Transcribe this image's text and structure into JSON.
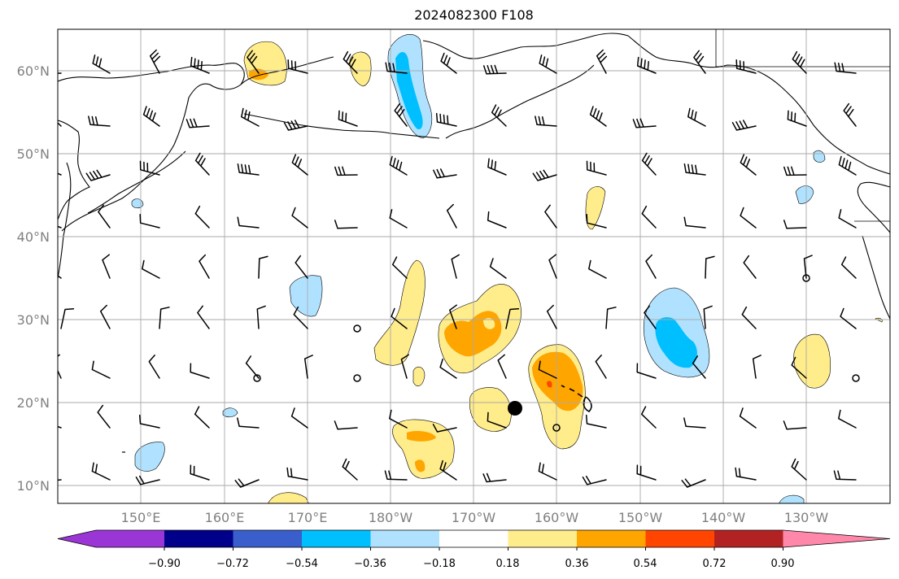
{
  "title": "2024082300 F108",
  "lat_labels": [
    "60°N",
    "50°N",
    "40°N",
    "30°N",
    "20°N",
    "10°N"
  ],
  "lon_labels": [
    "150°E",
    "160°E",
    "170°E",
    "180°W",
    "170°W",
    "160°W",
    "150°W",
    "140°W",
    "130°W"
  ],
  "colorbar": {
    "tick_labels": [
      "−0.90",
      "−0.72",
      "−0.54",
      "−0.36",
      "−0.18",
      "0.18",
      "0.36",
      "0.54",
      "0.72",
      "0.90"
    ],
    "colors": [
      "#9b36d6",
      "#00008a",
      "#3a5fcd",
      "#00bfff",
      "#b0e2ff",
      "#ffffff",
      "#ffec8b",
      "#ffa500",
      "#ff4500",
      "#b22222",
      "#ff88aa"
    ]
  },
  "colors": {
    "light_yellow": "#ffec8b",
    "orange": "#ffa500",
    "red": "#ff4500",
    "light_blue": "#b0e2ff",
    "deep_sky_blue": "#00bfff",
    "grid": "#aaaaaa",
    "axis_label": "#808080"
  }
}
